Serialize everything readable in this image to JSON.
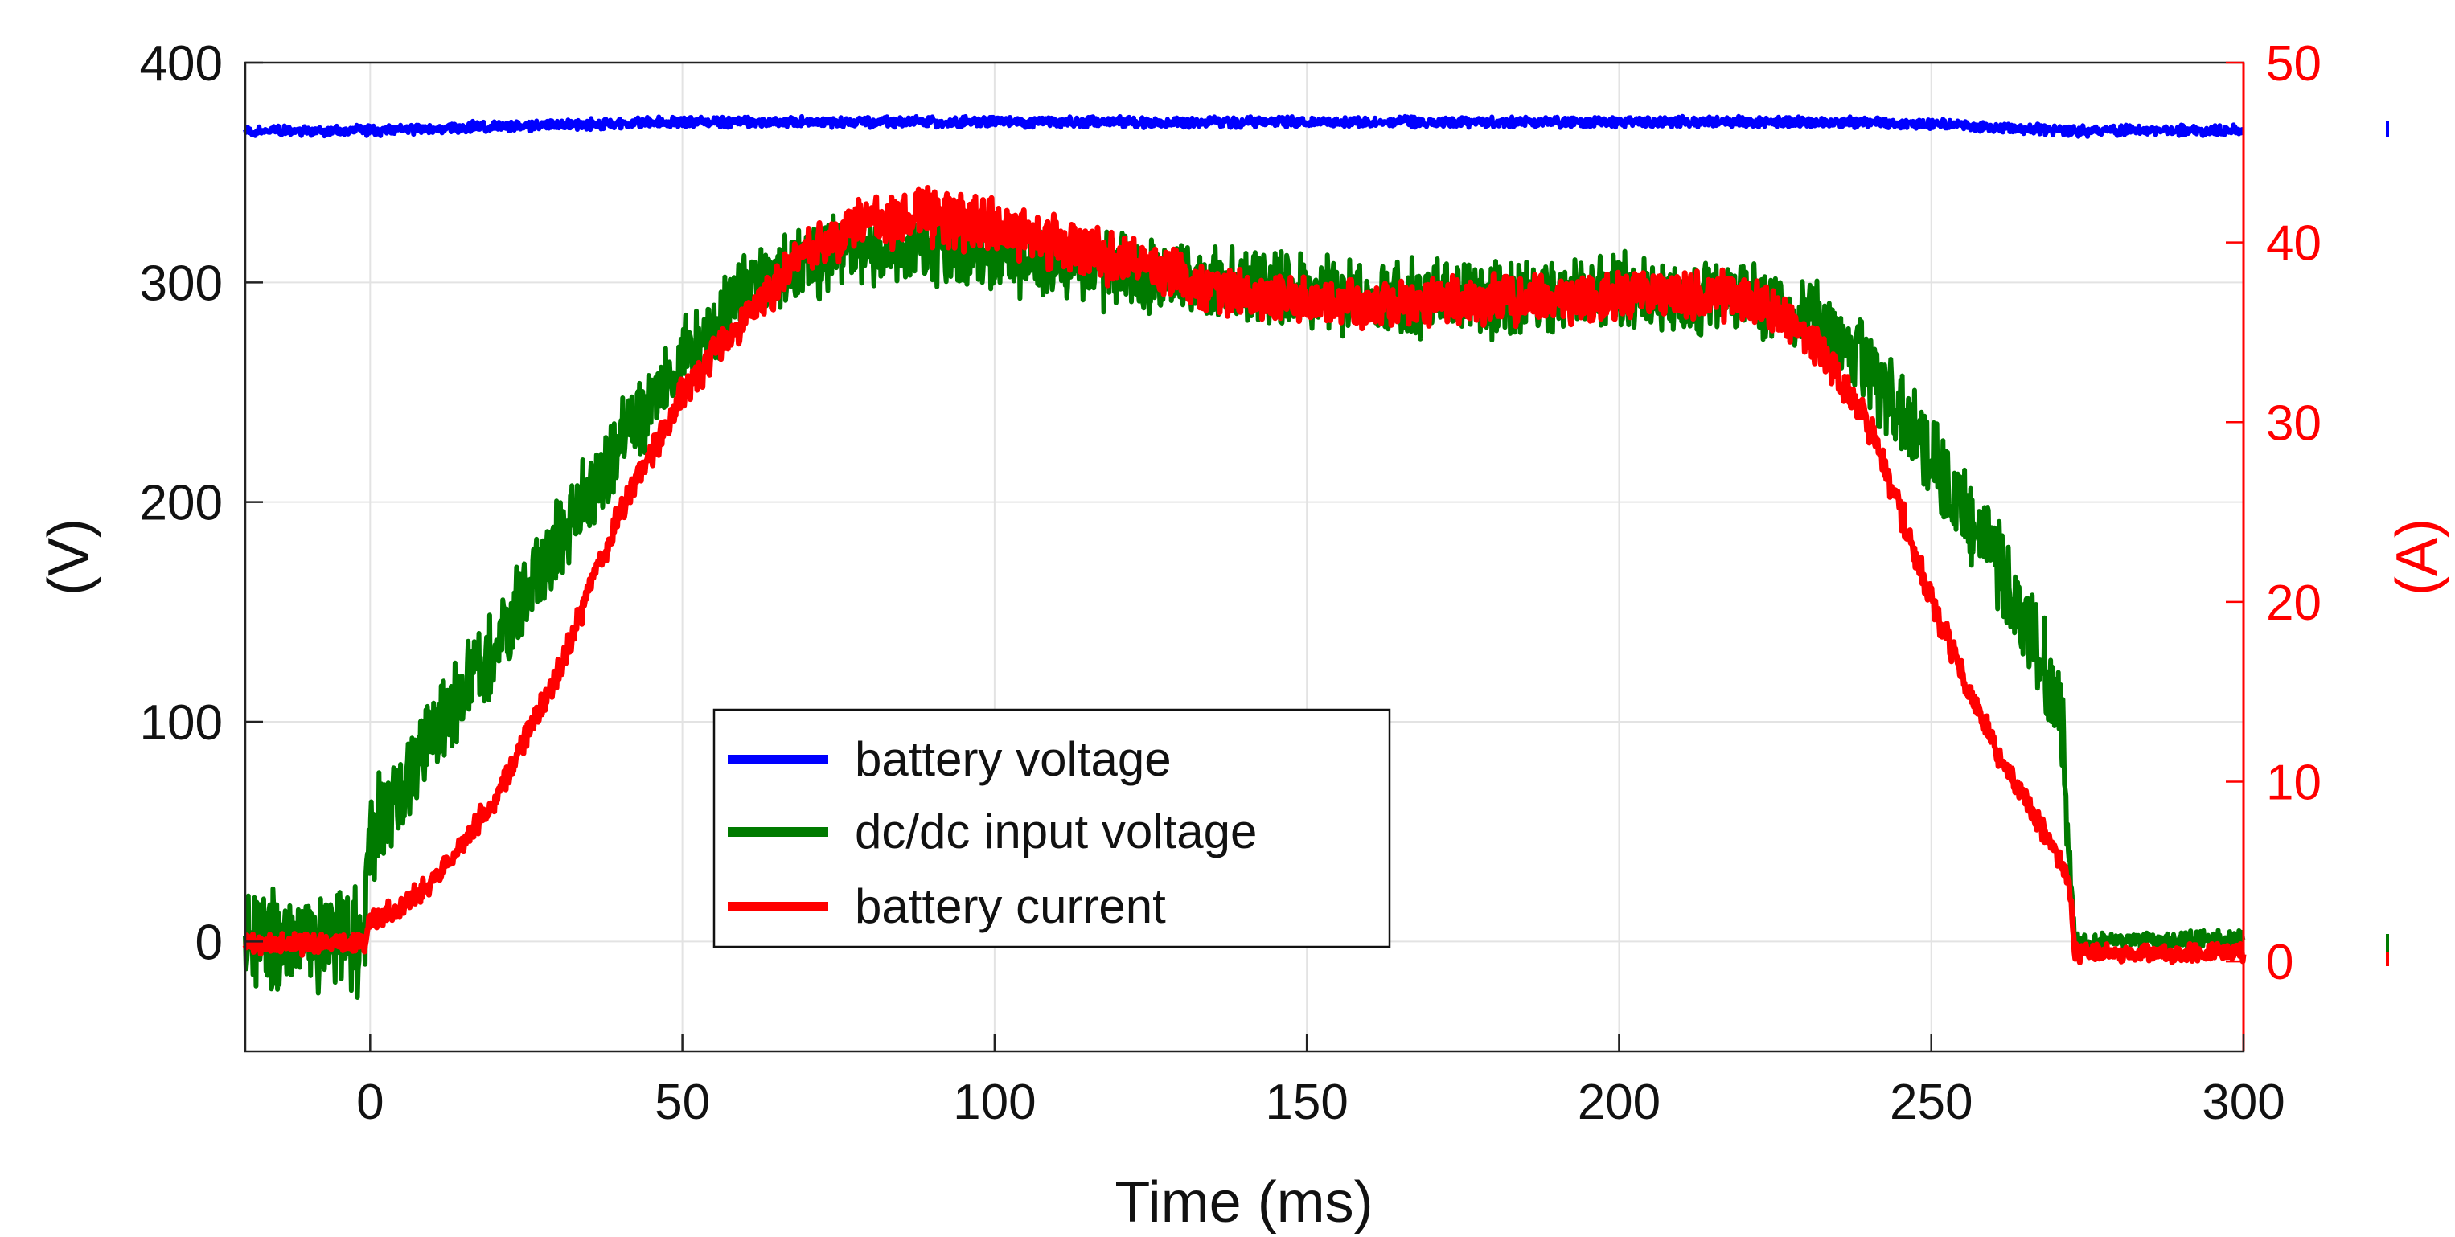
{
  "chart_data": {
    "type": "line",
    "title": "",
    "xlabel": "Time (ms)",
    "ylabel_left": "(V)",
    "ylabel_right": "(A)",
    "xlim": [
      -20,
      300
    ],
    "ylim_left": [
      -50,
      400
    ],
    "ylim_right": [
      -5,
      50
    ],
    "xticks": [
      "0",
      "50",
      "100",
      "150",
      "200",
      "250",
      "300"
    ],
    "yticks_left": [
      "0",
      "100",
      "200",
      "300",
      "400"
    ],
    "yticks_right": [
      "0",
      "10",
      "20",
      "30",
      "40",
      "50"
    ],
    "grid": true,
    "legend_position": "center-left",
    "colors": {
      "battery_voltage": "#0000ff",
      "dcdc_input_voltage": "#007a00",
      "battery_current": "#ff0000",
      "right_axis": "#ff0000",
      "left_axis": "#222222"
    },
    "series": [
      {
        "name": "battery voltage",
        "axis": "left",
        "color": "#0000ff",
        "x": [
          -20,
          0,
          20,
          50,
          100,
          150,
          200,
          230,
          250,
          272,
          300
        ],
        "y": [
          369,
          369,
          371,
          373,
          373,
          373,
          373,
          373,
          372,
          369,
          369
        ],
        "noise_band": 4
      },
      {
        "name": "dc/dc input voltage",
        "axis": "left",
        "color": "#007a00",
        "x": [
          -20,
          -1,
          0,
          5,
          10,
          20,
          30,
          40,
          50,
          60,
          70,
          80,
          90,
          100,
          120,
          140,
          160,
          180,
          200,
          220,
          230,
          240,
          250,
          260,
          268,
          271,
          272,
          273,
          300
        ],
        "y": [
          0,
          0,
          50,
          70,
          95,
          135,
          180,
          225,
          265,
          295,
          310,
          315,
          315,
          312,
          305,
          298,
          293,
          293,
          295,
          293,
          288,
          260,
          220,
          175,
          125,
          100,
          40,
          0,
          0
        ],
        "noise_band": [
          40,
          40,
          38,
          36,
          34,
          32,
          32,
          32,
          30,
          30,
          30,
          28,
          28,
          28,
          28,
          28,
          28,
          28,
          28,
          28,
          28,
          30,
          32,
          34,
          36,
          36,
          20,
          8,
          8
        ]
      },
      {
        "name": "battery current",
        "axis": "right",
        "color": "#ff0000",
        "x": [
          -20,
          -1,
          0,
          5,
          10,
          20,
          30,
          40,
          50,
          60,
          70,
          80,
          90,
          100,
          120,
          140,
          160,
          180,
          200,
          220,
          230,
          240,
          250,
          260,
          270,
          272,
          273,
          300
        ],
        "y": [
          1,
          1,
          2.2,
          3,
          4.5,
          9,
          16,
          25,
          31.5,
          36,
          39.5,
          41.2,
          41.5,
          41,
          39,
          37,
          36.5,
          36.8,
          37,
          37,
          35,
          30,
          20,
          12,
          6,
          4.5,
          0.5,
          0.5
        ],
        "noise_band": [
          1,
          1,
          1,
          1,
          1,
          1.2,
          1.2,
          1.4,
          1.6,
          2,
          2.2,
          2.4,
          2.6,
          2.6,
          2.4,
          2.2,
          2.2,
          2.2,
          2.2,
          2.2,
          2,
          1.8,
          1.4,
          1.2,
          1,
          1,
          0.8,
          0.8
        ]
      }
    ]
  },
  "legend": {
    "items": [
      {
        "label": "battery voltage",
        "color": "#0000ff"
      },
      {
        "label": "dc/dc input voltage",
        "color": "#007a00"
      },
      {
        "label": "battery current",
        "color": "#ff0000"
      }
    ]
  }
}
